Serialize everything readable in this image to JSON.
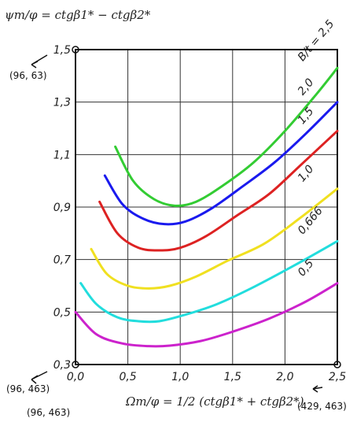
{
  "chart_data": {
    "type": "line",
    "title": "",
    "ylabel_top": "ψт/φ = ctgβ1* − ctgβ2*",
    "xlabel_bottom": "Ωт/φ = 1/2 (ctgβ1* + ctgβ2*)",
    "x_ticks": [
      "0,0",
      "0,5",
      "1,0",
      "1,5",
      "2,0",
      "2,5"
    ],
    "y_ticks": [
      "0,3",
      "0,5",
      "0,7",
      "0,9",
      "1,1",
      "1,3",
      "1,5"
    ],
    "xlim": [
      0,
      2.5
    ],
    "ylim": [
      0.3,
      1.5
    ],
    "grid": true,
    "series": [
      {
        "name": "B/t = 2,5",
        "color": "#33cc33",
        "x": [
          0.38,
          0.55,
          0.75,
          0.95,
          1.15,
          1.4,
          1.7,
          2.0,
          2.3,
          2.5
        ],
        "y": [
          1.13,
          1.0,
          0.93,
          0.905,
          0.92,
          0.98,
          1.07,
          1.19,
          1.33,
          1.43
        ]
      },
      {
        "name": "2,0",
        "color": "#1a1aee",
        "x": [
          0.28,
          0.45,
          0.65,
          0.85,
          1.05,
          1.3,
          1.6,
          1.9,
          2.2,
          2.5
        ],
        "y": [
          1.02,
          0.91,
          0.855,
          0.835,
          0.845,
          0.895,
          0.98,
          1.07,
          1.18,
          1.3
        ]
      },
      {
        "name": "1,5",
        "color": "#dd2222",
        "x": [
          0.23,
          0.4,
          0.6,
          0.8,
          1.0,
          1.25,
          1.55,
          1.85,
          2.15,
          2.5
        ],
        "y": [
          0.92,
          0.8,
          0.745,
          0.735,
          0.745,
          0.79,
          0.87,
          0.95,
          1.06,
          1.19
        ]
      },
      {
        "name": "1,0",
        "color": "#f0e020",
        "x": [
          0.15,
          0.3,
          0.5,
          0.7,
          0.9,
          1.15,
          1.45,
          1.8,
          2.15,
          2.5
        ],
        "y": [
          0.74,
          0.645,
          0.6,
          0.59,
          0.6,
          0.635,
          0.695,
          0.76,
          0.86,
          0.97
        ]
      },
      {
        "name": "0,666",
        "color": "#22dddd",
        "x": [
          0.05,
          0.2,
          0.4,
          0.6,
          0.8,
          1.05,
          1.35,
          1.7,
          2.1,
          2.5
        ],
        "y": [
          0.61,
          0.53,
          0.48,
          0.465,
          0.465,
          0.49,
          0.53,
          0.595,
          0.68,
          0.77
        ]
      },
      {
        "name": "0,5",
        "color": "#cc22cc",
        "x": [
          0.0,
          0.2,
          0.45,
          0.7,
          0.9,
          1.2,
          1.5,
          1.85,
          2.2,
          2.5
        ],
        "y": [
          0.5,
          0.415,
          0.38,
          0.37,
          0.372,
          0.39,
          0.425,
          0.475,
          0.54,
          0.61
        ]
      }
    ]
  },
  "annotations": {
    "top_left": "(96, 63)",
    "bottom_left_origin": "(96, 463)",
    "bottom_left_label": "(96, 463)",
    "bottom_right": "(429, 463)"
  }
}
